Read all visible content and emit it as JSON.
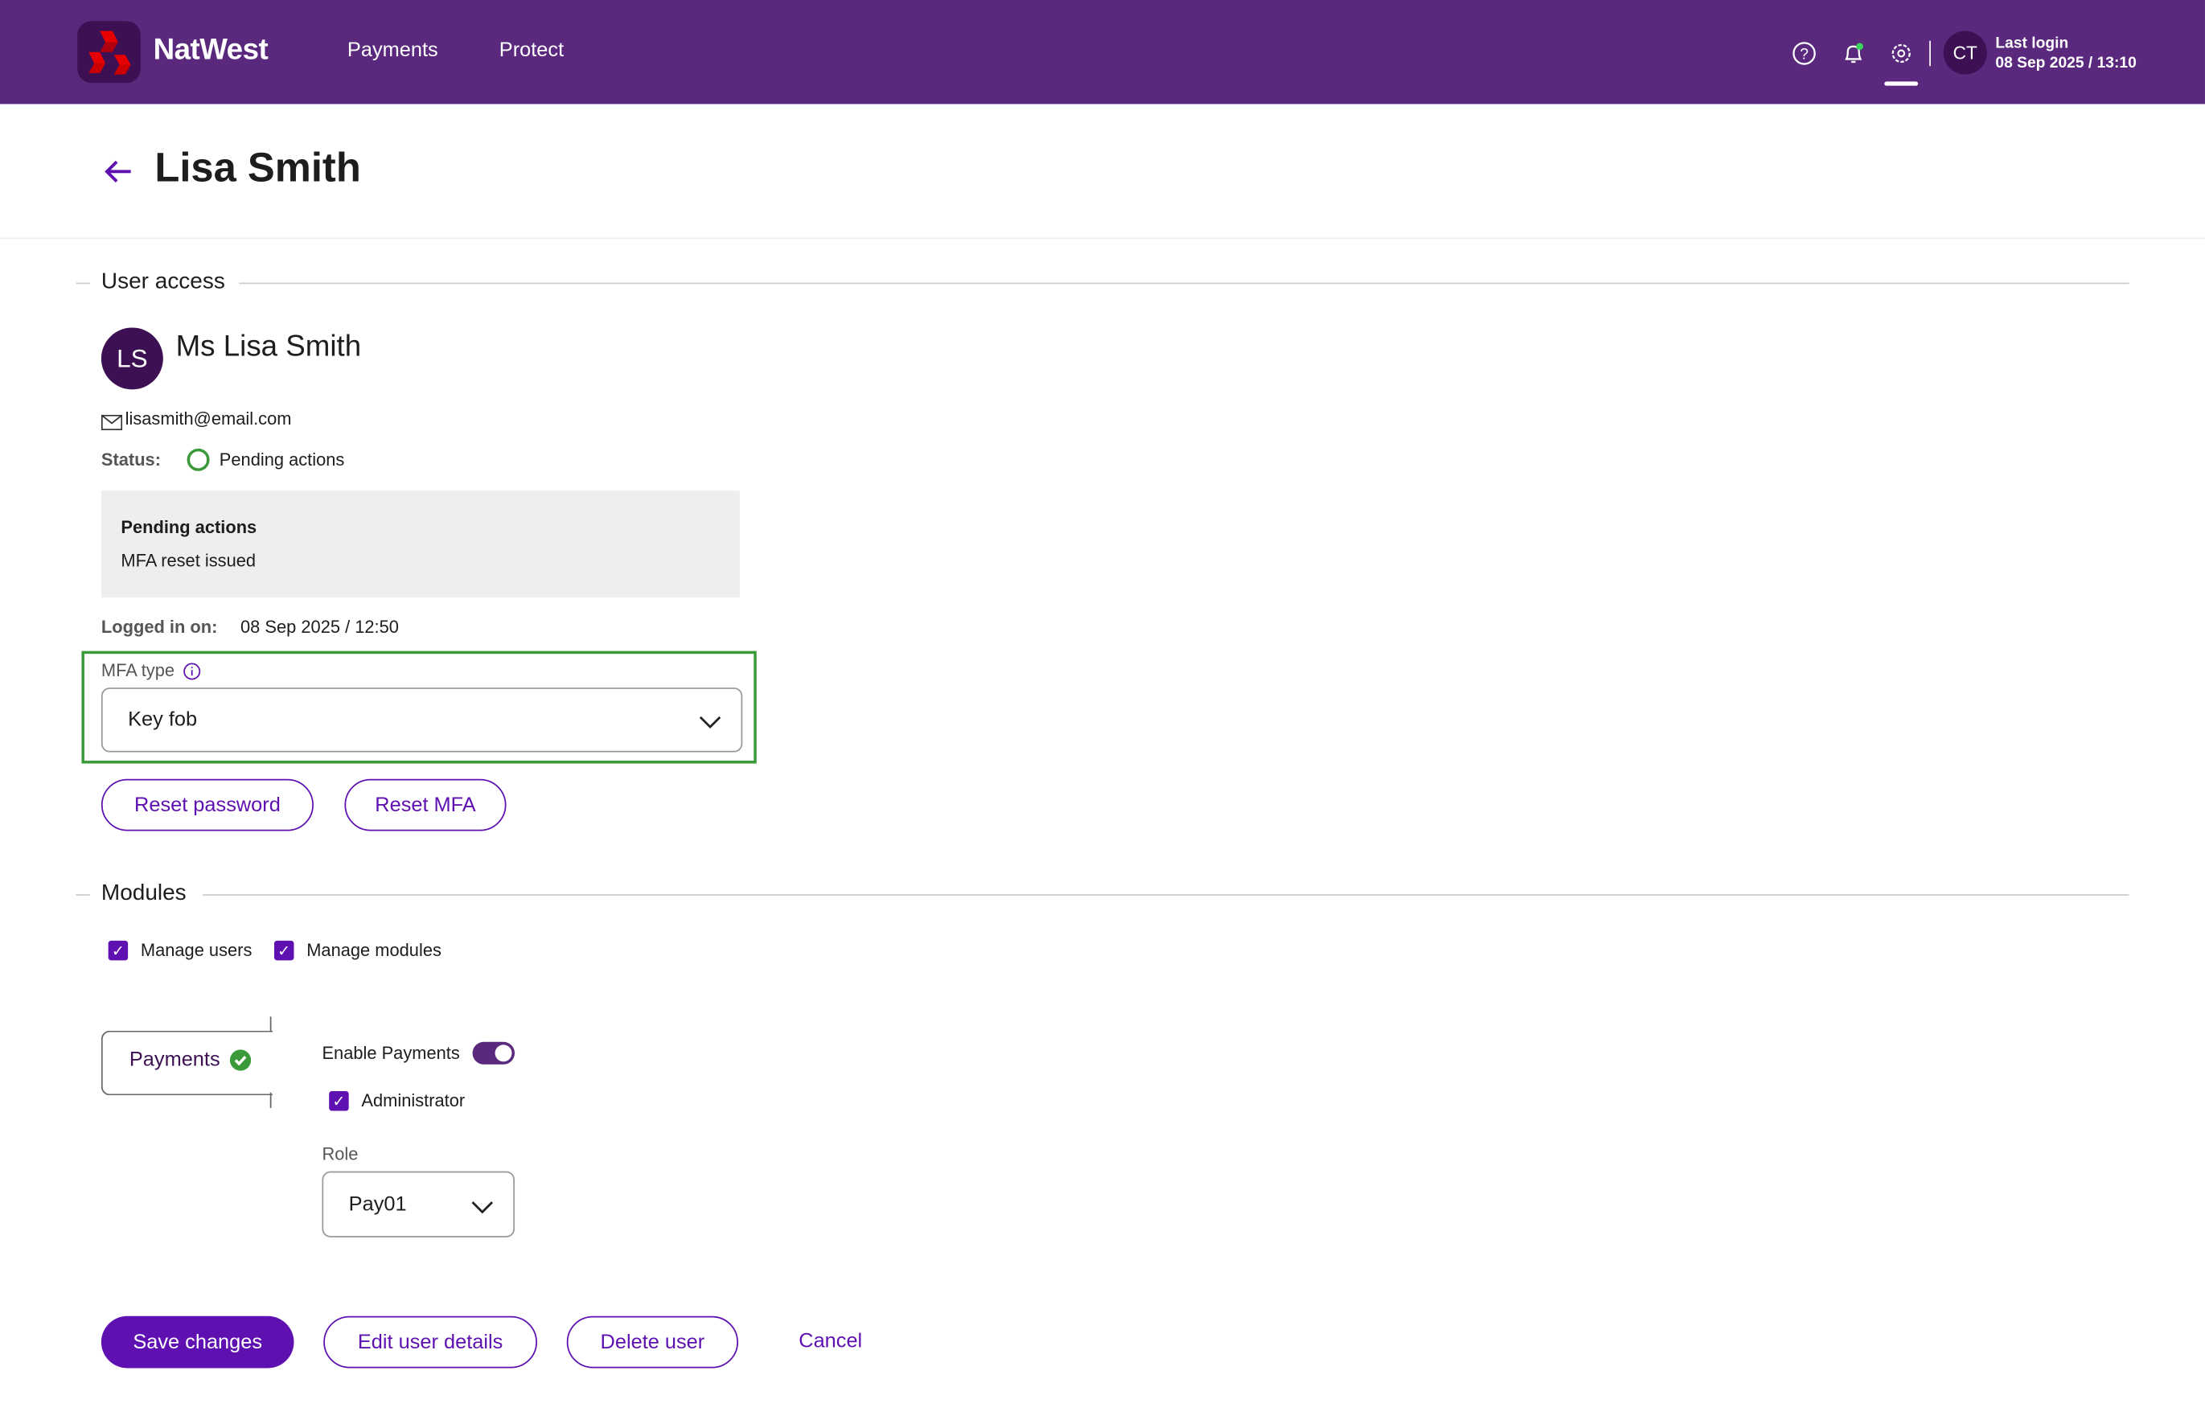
{
  "header": {
    "brand": "NatWest",
    "nav": [
      "Payments",
      "Protect"
    ],
    "icons": [
      "help-icon",
      "bell-icon",
      "gear-icon"
    ],
    "user_initials": "CT",
    "last_login_label": "Last login",
    "last_login_value": "08 Sep 2025 / 13:10"
  },
  "page": {
    "title": "Lisa Smith",
    "back_icon": "arrow-left-icon"
  },
  "user_access": {
    "section_title": "User access",
    "initials": "LS",
    "full_name": "Ms Lisa Smith",
    "email": "lisasmith@email.com",
    "status_label": "Status:",
    "status_value": "Pending actions",
    "pending_title": "Pending actions",
    "pending_item": "MFA reset issued",
    "logged_in_label": "Logged in on:",
    "logged_in_value": "08 Sep 2025 / 12:50",
    "mfa_label": "MFA type",
    "mfa_value": "Key fob",
    "reset_password": "Reset password",
    "reset_mfa": "Reset MFA"
  },
  "modules": {
    "section_title": "Modules",
    "checkboxes": [
      {
        "label": "Manage users",
        "checked": true
      },
      {
        "label": "Manage modules",
        "checked": true
      }
    ],
    "tab_label": "Payments",
    "enable_label": "Enable Payments",
    "enabled": true,
    "admin_label": "Administrator",
    "admin_checked": true,
    "role_label": "Role",
    "role_value": "Pay01"
  },
  "actions": {
    "save": "Save changes",
    "edit": "Edit user details",
    "delete": "Delete user",
    "cancel": "Cancel"
  },
  "colors": {
    "header": "#5a287d",
    "primary": "#5e10b1",
    "success": "#3a9a3a",
    "avatar": "#3c1053"
  }
}
